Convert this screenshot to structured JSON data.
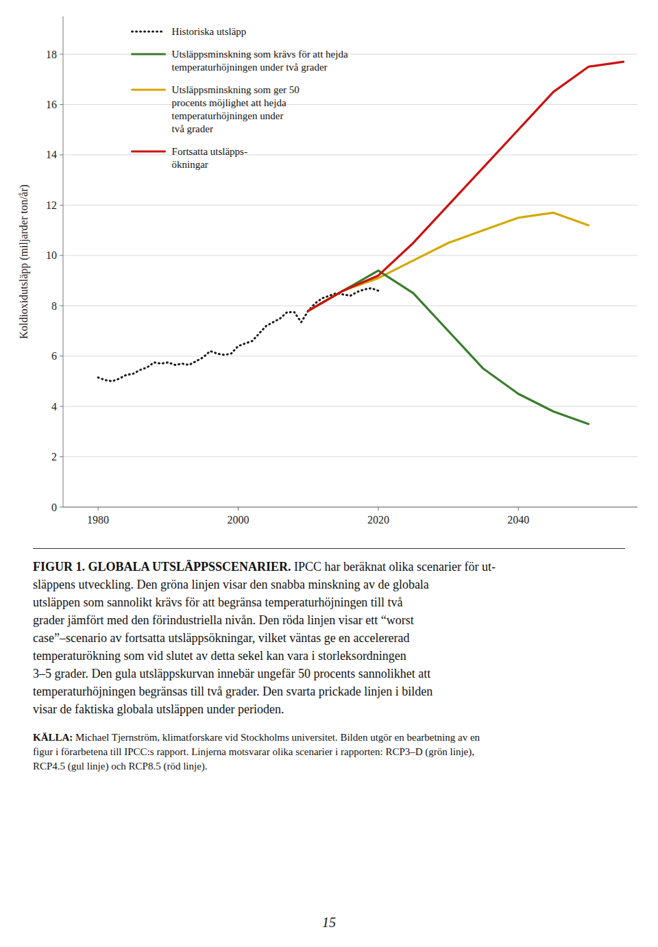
{
  "chart_data": {
    "type": "line",
    "y_label": "Koldioxidutsläpp (miljarder ton/år)",
    "xlim": [
      1975,
      2057
    ],
    "xticks": [
      1980,
      2000,
      2020,
      2040
    ],
    "ylim": [
      0,
      19.5
    ],
    "yticks": [
      0,
      2,
      4,
      6,
      8,
      10,
      12,
      14,
      16,
      18
    ],
    "grid": true,
    "legend": "upper left",
    "series": [
      {
        "name": "Historiska utsläpp",
        "color": "#1a1a1a",
        "line_style": "dotted",
        "x": [
          1980,
          1981,
          1982,
          1983,
          1984,
          1985,
          1986,
          1987,
          1988,
          1989,
          1990,
          1991,
          1992,
          1993,
          1994,
          1995,
          1996,
          1997,
          1998,
          1999,
          2000,
          2001,
          2002,
          2003,
          2004,
          2005,
          2006,
          2007,
          2008,
          2009,
          2010,
          2011,
          2012,
          2013,
          2014,
          2015,
          2016,
          2017,
          2018,
          2019,
          2020
        ],
        "values": [
          5.15,
          5.05,
          5.0,
          5.1,
          5.25,
          5.3,
          5.45,
          5.55,
          5.75,
          5.7,
          5.75,
          5.65,
          5.7,
          5.65,
          5.8,
          5.95,
          6.2,
          6.1,
          6.05,
          6.1,
          6.4,
          6.5,
          6.6,
          6.9,
          7.2,
          7.35,
          7.5,
          7.75,
          7.75,
          7.35,
          7.8,
          8.1,
          8.3,
          8.4,
          8.5,
          8.45,
          8.4,
          8.55,
          8.65,
          8.7,
          8.6
        ]
      },
      {
        "name": "Utsläppsminskning som krävs för att hejda\ntemperaturhöjningen under två grader",
        "color": "#3a7d2c",
        "line_style": "solid",
        "x": [
          2010,
          2015,
          2020,
          2025,
          2030,
          2035,
          2040,
          2045,
          2050
        ],
        "values": [
          7.8,
          8.6,
          9.4,
          8.5,
          7.0,
          5.5,
          4.5,
          3.8,
          3.3
        ]
      },
      {
        "name": "Utsläppsminskning som ger 50\nprocents möjlighet att hejda\ntemperaturhöjningen under\ntvå grader",
        "color": "#d4a800",
        "line_style": "solid",
        "x": [
          2010,
          2015,
          2020,
          2025,
          2030,
          2035,
          2040,
          2045,
          2050
        ],
        "values": [
          7.8,
          8.6,
          9.1,
          9.8,
          10.5,
          11.0,
          11.5,
          11.7,
          11.2
        ]
      },
      {
        "name": "Fortsatta utsläpps-\nökningar",
        "color": "#cc1111",
        "line_style": "solid",
        "x": [
          2010,
          2015,
          2020,
          2025,
          2030,
          2035,
          2040,
          2045,
          2050,
          2055
        ],
        "values": [
          7.8,
          8.6,
          9.2,
          10.5,
          12.0,
          13.5,
          15.0,
          16.5,
          17.5,
          17.7
        ]
      }
    ],
    "caption_heading": "FIGUR 1. GLOBALA UTSLÄPPSSCENARIER.",
    "caption": " IPCC har beräknat olika scenarier för ut-\nsläppens utveckling. Den gröna linjen visar den snabba minskning av de globala\nutsläppen som sannolikt krävs för att begränsa temperaturhöjningen till två\ngrader jämfört med den förindustriella nivån. Den röda linjen visar ett “worst\ncase”–scenario av fortsatta utsläppsökningar, vilket väntas ge en accelererad\ntemperaturökning som vid slutet av detta sekel kan vara i storleksordningen\n3–5 grader. Den gula utsläppskurvan innebär ungefär 50 procents sannolikhet att\ntemperaturhöjningen begränsas till två grader. Den svarta prickade linjen i bilden\nvisar de faktiska globala utsläppen under perioden.",
    "source_heading": "KÄLLA:",
    "source": " Michael Tjernström, klimatforskare vid Stockholms universitet. Bilden utgör en bearbetning av en\nfigur i förarbetena till IPCC:s rapport. Linjerna motsvarar olika scenarier i rapporten: RCP3–D (grön linje),\nRCP4.5 (gul linje) och RCP8.5 (röd linje).",
    "page_number": "15"
  }
}
